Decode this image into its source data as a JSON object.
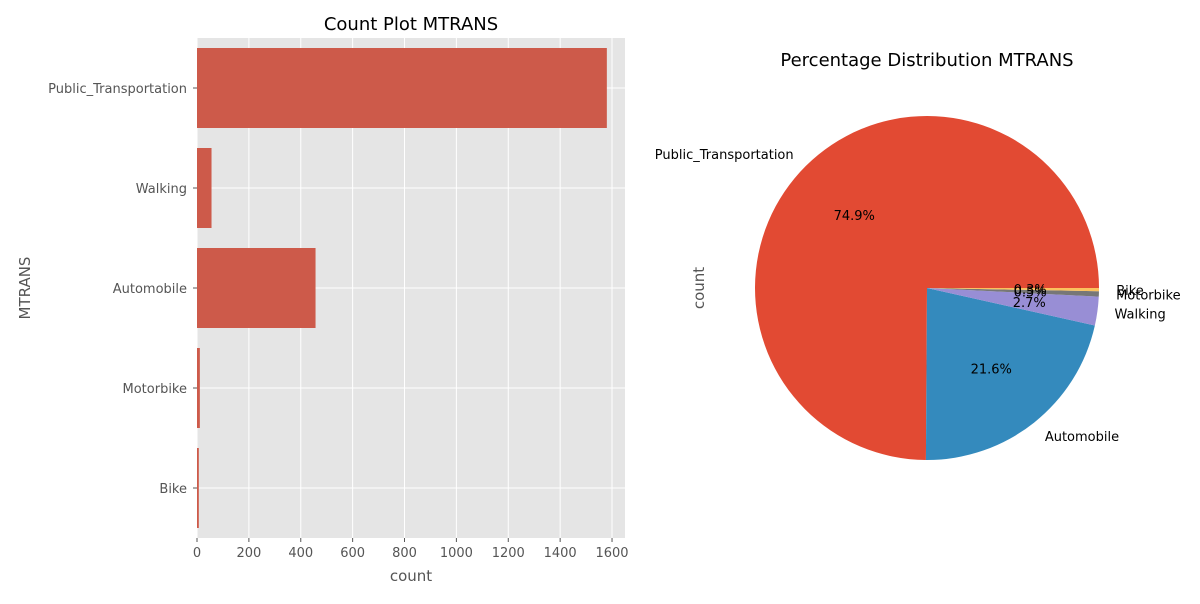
{
  "chart_data": [
    {
      "type": "bar",
      "orientation": "horizontal",
      "title": "Count Plot MTRANS",
      "xlabel": "count",
      "ylabel": "MTRANS",
      "categories": [
        "Public_Transportation",
        "Walking",
        "Automobile",
        "Motorbike",
        "Bike"
      ],
      "values": [
        1580,
        56,
        457,
        11,
        7
      ],
      "xlim": [
        0,
        1650
      ],
      "xticks": [
        0,
        200,
        400,
        600,
        800,
        1000,
        1200,
        1400,
        1600
      ],
      "grid": true,
      "bar_color": "#cd5a4a",
      "background_color": "#e5e5e5"
    },
    {
      "type": "pie",
      "title": "Percentage Distribution MTRANS",
      "ylabel": "count",
      "labels": [
        "Public_Transportation",
        "Automobile",
        "Walking",
        "Motorbike",
        "Bike"
      ],
      "percent_labels": [
        "74.9%",
        "21.6%",
        "2.7%",
        "0.5%",
        "0.3%"
      ],
      "values": [
        74.9,
        21.6,
        2.7,
        0.5,
        0.3
      ],
      "colors": [
        "#e24a33",
        "#348abd",
        "#988ed5",
        "#777777",
        "#fbc15e"
      ]
    }
  ]
}
